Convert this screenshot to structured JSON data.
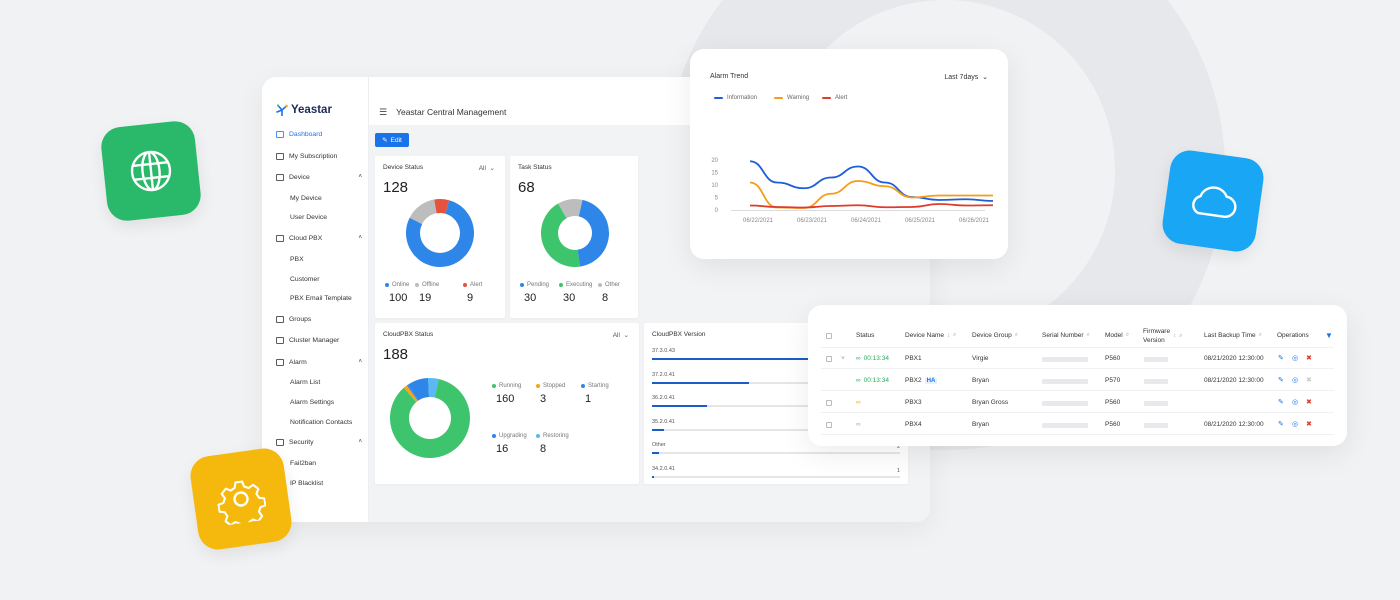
{
  "app": {
    "brand": "Yeastar",
    "header_title": "Yeastar Central Management",
    "edit_label": "Edit"
  },
  "sidebar": {
    "items": [
      {
        "label": "Dashboard",
        "active": true
      },
      {
        "label": "My Subscription"
      },
      {
        "label": "Device",
        "expandable": true
      },
      {
        "label": "My Device",
        "sub": true
      },
      {
        "label": "User Device",
        "sub": true
      },
      {
        "label": "Cloud PBX",
        "expandable": true
      },
      {
        "label": "PBX",
        "sub": true
      },
      {
        "label": "Customer",
        "sub": true
      },
      {
        "label": "PBX Email Template",
        "sub": true
      },
      {
        "label": "Groups"
      },
      {
        "label": "Cluster Manager"
      },
      {
        "label": "Alarm",
        "expandable": true
      },
      {
        "label": "Alarm List",
        "sub": true
      },
      {
        "label": "Alarm Settings",
        "sub": true
      },
      {
        "label": "Notification Contacts",
        "sub": true
      },
      {
        "label": "Security",
        "expandable": true
      },
      {
        "label": "Fail2ban",
        "sub": true
      },
      {
        "label": "IP Blacklist",
        "sub": true
      }
    ]
  },
  "device_status": {
    "title": "Device Status",
    "filter": "All",
    "total": "128",
    "legend": [
      {
        "label": "Online",
        "value": "100",
        "color": "#2d86e8"
      },
      {
        "label": "Offline",
        "value": "19",
        "color": "#bdbdbd"
      },
      {
        "label": "Alert",
        "value": "9",
        "color": "#e5533d"
      }
    ]
  },
  "task_status": {
    "title": "Task Status",
    "total": "68",
    "legend": [
      {
        "label": "Pending",
        "value": "30",
        "color": "#2d86e8"
      },
      {
        "label": "Executing",
        "value": "30",
        "color": "#3ec46d"
      },
      {
        "label": "Other",
        "value": "8",
        "color": "#bdbdbd"
      }
    ]
  },
  "cloudpbx_status": {
    "title": "CloudPBX Status",
    "filter": "All",
    "total": "188",
    "legend": [
      {
        "label": "Running",
        "value": "160",
        "color": "#3ec46d"
      },
      {
        "label": "Stopped",
        "value": "3",
        "color": "#f3a51b"
      },
      {
        "label": "Starting",
        "value": "1",
        "color": "#2d86e8"
      },
      {
        "label": "Upgrading",
        "value": "16",
        "color": "#2d86e8"
      },
      {
        "label": "Restoring",
        "value": "8",
        "color": "#5ab8f2"
      }
    ]
  },
  "cloudpbx_version": {
    "title": "CloudPBX Version",
    "rows": [
      {
        "label": "37.3.0.43",
        "fraction": 0.65,
        "count": ""
      },
      {
        "label": "37.2.0.41",
        "fraction": 0.39,
        "count": ""
      },
      {
        "label": "36.2.0.41",
        "fraction": 0.22,
        "count": ""
      },
      {
        "label": "35.2.0.41",
        "fraction": 0.05,
        "count": ""
      },
      {
        "label": "Other",
        "fraction": 0.03,
        "count": "2"
      },
      {
        "label": "34.2.0.41",
        "fraction": 0.01,
        "count": "1"
      }
    ]
  },
  "chart_data": {
    "type": "line",
    "title": "Alarm Trend",
    "range_label": "Last 7days",
    "x": [
      "06/22/2021",
      "06/23/2021",
      "06/24/2021",
      "06/25/2021",
      "06/26/2021"
    ],
    "ylim": [
      0,
      20
    ],
    "yticks": [
      "20",
      "15",
      "10",
      "5",
      "0"
    ],
    "legend_position": "top-left",
    "series": [
      {
        "name": "Information",
        "color": "#1f5ed8",
        "points": [
          [
            0,
            19.5
          ],
          [
            0.5,
            11
          ],
          [
            1,
            8.7
          ],
          [
            1.5,
            13
          ],
          [
            2,
            17.4
          ],
          [
            2.5,
            11
          ],
          [
            3,
            5.2
          ],
          [
            3.5,
            4
          ],
          [
            4,
            4.3
          ],
          [
            4.5,
            3.6
          ]
        ]
      },
      {
        "name": "Warning",
        "color": "#f59c19",
        "points": [
          [
            0,
            11
          ],
          [
            0.5,
            1
          ],
          [
            1,
            0.8
          ],
          [
            1.5,
            6.5
          ],
          [
            2,
            11.6
          ],
          [
            2.5,
            9.5
          ],
          [
            3,
            5
          ],
          [
            3.5,
            5.8
          ],
          [
            4,
            5.8
          ],
          [
            4.5,
            5.8
          ]
        ]
      },
      {
        "name": "Alert",
        "color": "#de3b2c",
        "points": [
          [
            0,
            1.8
          ],
          [
            0.5,
            1.2
          ],
          [
            1,
            1
          ],
          [
            1.5,
            1.6
          ],
          [
            2,
            1.9
          ],
          [
            2.5,
            1.1
          ],
          [
            3,
            1.2
          ],
          [
            3.5,
            2.4
          ],
          [
            4,
            1.8
          ],
          [
            4.5,
            1.9
          ]
        ]
      }
    ]
  },
  "device_table": {
    "columns": [
      "Status",
      "Device Name",
      "Device Group",
      "Serial Number",
      "Model",
      "Firmware Version",
      "Last Backup Time",
      "Operations"
    ],
    "rows": [
      {
        "status": "00:13:34",
        "status_kind": "online",
        "name": "PBX1",
        "ha": "",
        "group": "Virgie",
        "model": "P560",
        "backup": "08/21/2020 12:30:00",
        "expanded": true
      },
      {
        "status": "00:13:34",
        "status_kind": "online",
        "name": "PBX2",
        "ha": "HA",
        "group": "Bryan",
        "model": "P570",
        "backup": "08/21/2020 12:30:00"
      },
      {
        "status": "",
        "status_kind": "warn",
        "name": "PBX3",
        "ha": "",
        "group": "Bryan Gross",
        "model": "P560",
        "backup": ""
      },
      {
        "status": "",
        "status_kind": "offline",
        "name": "PBX4",
        "ha": "",
        "group": "Bryan",
        "model": "P560",
        "backup": "08/21/2020 12:30:00"
      }
    ]
  },
  "icons": [
    "globe-icon",
    "cloud-icon",
    "gear-icon"
  ]
}
